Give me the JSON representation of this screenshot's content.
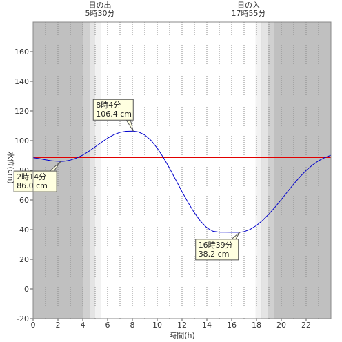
{
  "chart_data": {
    "type": "line",
    "xlabel": "時間(h)",
    "ylabel": "水位(cm)",
    "xlim": [
      0,
      24
    ],
    "ylim": [
      -20,
      180
    ],
    "xticks": [
      0,
      2,
      4,
      6,
      8,
      10,
      12,
      14,
      16,
      18,
      20,
      22
    ],
    "yticks": [
      -20,
      0,
      20,
      40,
      60,
      80,
      100,
      120,
      140,
      160
    ],
    "grid": "vertical dotted",
    "reference_line": {
      "y": 88.6,
      "color": "#e00000"
    },
    "series": [
      {
        "color": "#0000cc",
        "x": [
          0,
          0.5,
          1,
          1.5,
          2,
          2.23,
          2.5,
          3,
          3.5,
          4,
          4.5,
          5,
          5.5,
          6,
          6.5,
          7,
          7.5,
          8.07,
          8.5,
          9,
          9.5,
          10,
          10.5,
          11,
          11.5,
          12,
          12.5,
          13,
          13.5,
          14,
          14.5,
          15,
          15.5,
          16,
          16.65,
          17,
          17.5,
          18,
          18.5,
          19,
          19.5,
          20,
          20.5,
          21,
          21.5,
          22,
          22.5,
          23,
          23.5,
          24
        ],
        "y": [
          88.5,
          87.9,
          87.1,
          86.4,
          86.1,
          86.0,
          86.1,
          86.9,
          88.3,
          90.3,
          92.9,
          95.8,
          98.8,
          101.7,
          104.0,
          105.6,
          106.3,
          106.4,
          105.8,
          103.8,
          100.2,
          95.0,
          88.6,
          81.3,
          73.5,
          65.6,
          58.1,
          51.3,
          45.6,
          41.2,
          38.9,
          38.3,
          38.3,
          38.2,
          38.2,
          38.6,
          40.2,
          42.8,
          46.3,
          50.5,
          55.2,
          60.3,
          65.6,
          70.8,
          75.6,
          79.9,
          83.5,
          86.4,
          88.6,
          90.2
        ]
      }
    ],
    "annotations": [
      {
        "time": "2時14分",
        "value": "86.0 cm",
        "x": 2.23,
        "y": 86.0
      },
      {
        "time": "8時4分",
        "value": "106.4 cm",
        "x": 8.07,
        "y": 106.4
      },
      {
        "time": "16時39分",
        "value": "38.2 cm",
        "x": 16.65,
        "y": 38.2
      }
    ],
    "sun": {
      "sunrise": {
        "label": "日の出",
        "time": "5時30分",
        "x": 5.5
      },
      "sunset": {
        "label": "日の入",
        "time": "17時55分",
        "x": 17.92
      }
    },
    "twilight_bands": [
      {
        "from": 4.0,
        "to": 4.6,
        "shade": "#d0d0d0"
      },
      {
        "from": 4.6,
        "to": 5.0,
        "shade": "#e4e4e4"
      },
      {
        "from": 5.0,
        "to": 5.5,
        "shade": "#f2f2f2"
      },
      {
        "from": 17.9,
        "to": 18.4,
        "shade": "#f2f2f2"
      },
      {
        "from": 18.4,
        "to": 18.9,
        "shade": "#e4e4e4"
      },
      {
        "from": 18.9,
        "to": 19.4,
        "shade": "#d0d0d0"
      }
    ],
    "night_color": "#c0c0c0"
  }
}
